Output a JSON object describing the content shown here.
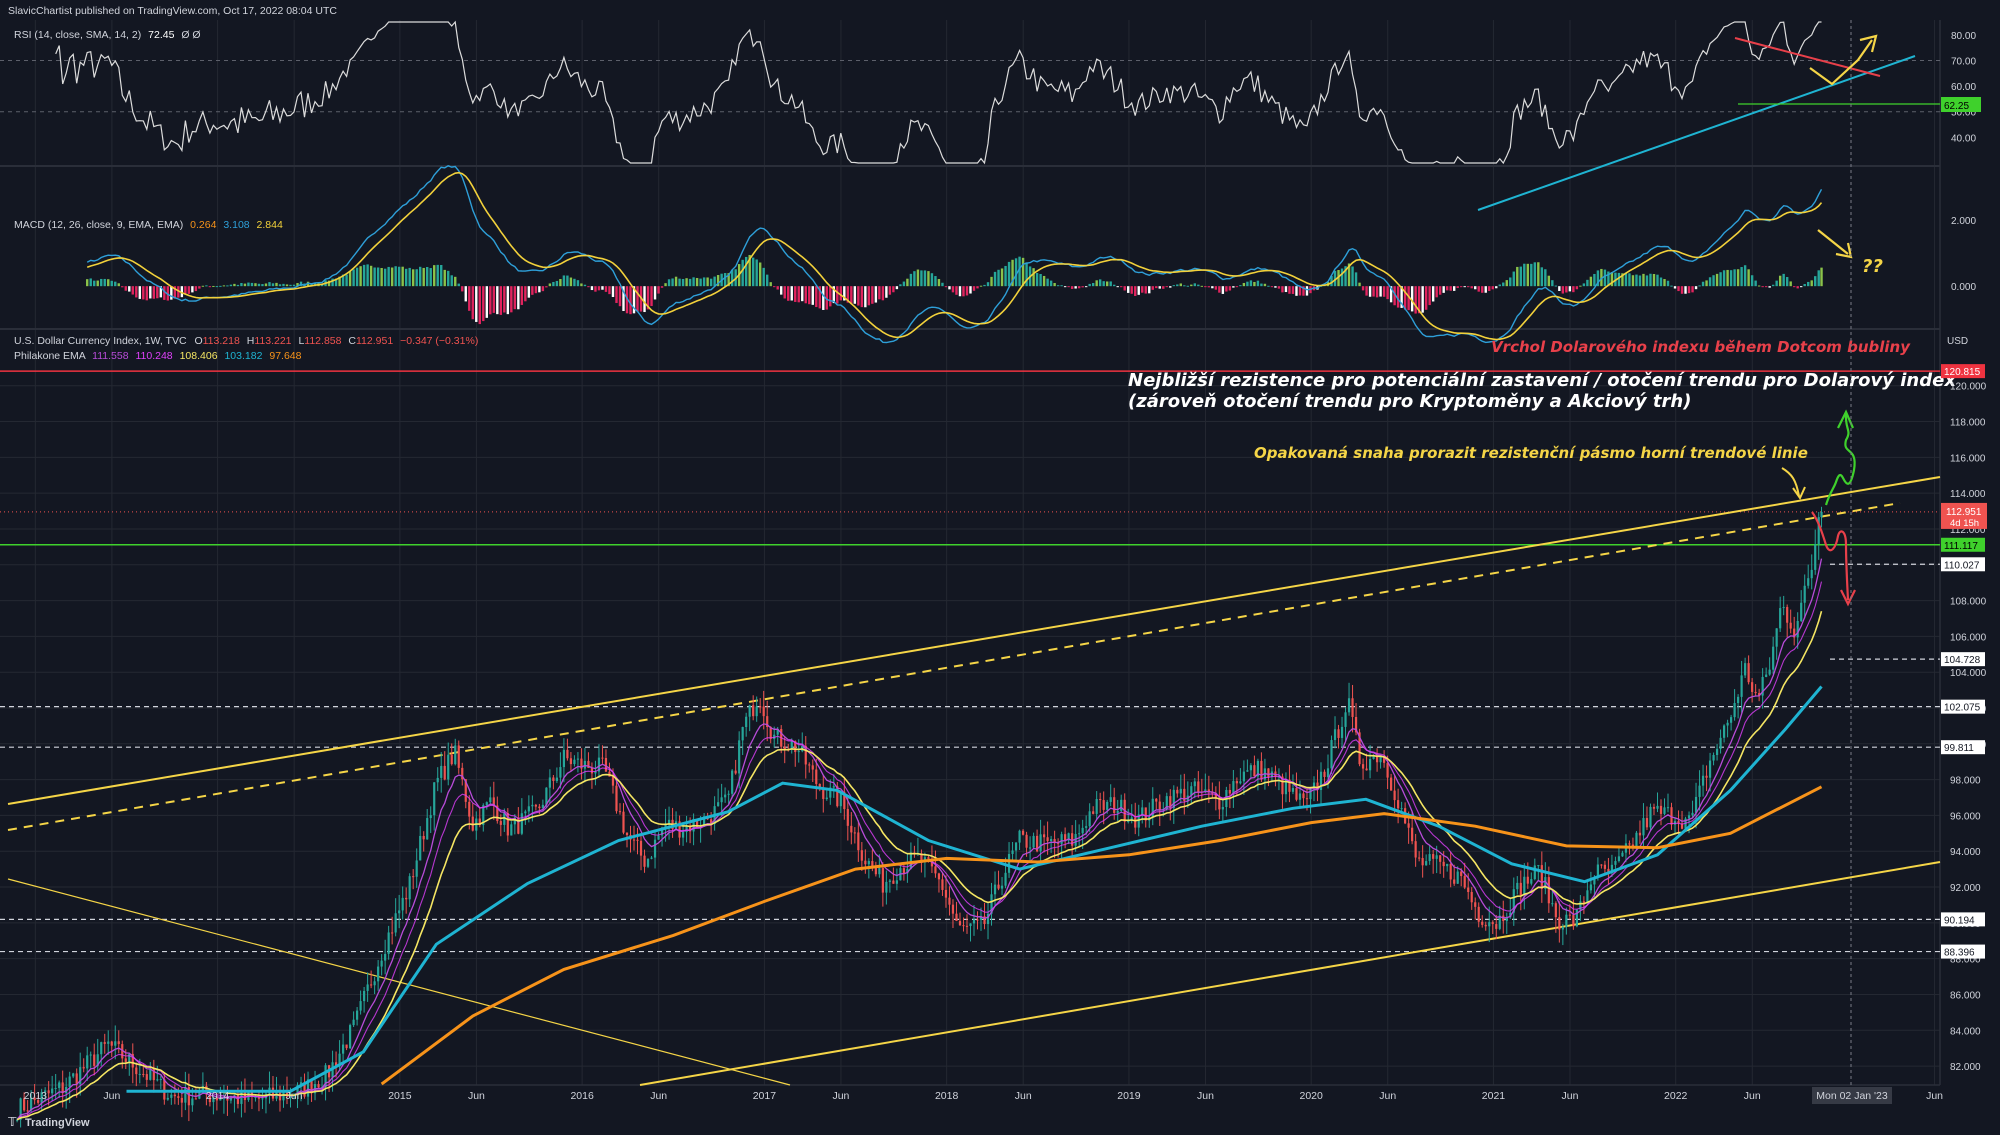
{
  "header": {
    "published": "SlavicChartist published on TradingView.com, Oct 17, 2022 08:04 UTC",
    "rsi_legend": "RSI (14, close, SMA, 14, 2)",
    "rsi_value": "72.45",
    "rsi_na": "Ø Ø",
    "macd_legend": "MACD (12, 26, close, 9, EMA, EMA)",
    "macd_values": [
      "0.264",
      "3.108",
      "2.844"
    ],
    "symbol": "U.S. Dollar Currency Index, 1W, TVC",
    "ohlc": {
      "o_label": "O",
      "o": "113.218",
      "h_label": "H",
      "h": "113.221",
      "l_label": "L",
      "l": "112.858",
      "c_label": "C",
      "c": "112.951",
      "chg": "−0.347 (−0.31%)"
    },
    "ema_legend": "Philakone EMA",
    "ema_values": [
      "111.558",
      "110.248",
      "108.406",
      "103.182",
      "97.648"
    ],
    "logo": "TradingView"
  },
  "colors": {
    "background": "#131722",
    "grid": "#242832",
    "rsi_line": "#dcdcdc",
    "macd_line": "#2e9fd8",
    "signal_line": "#f2d13b",
    "hist_green": "#26a69a",
    "hist_red": "#e0245e",
    "candle_up": "#26a69a",
    "candle_down": "#ef5350",
    "ema_fast": "#b84cd9",
    "ema_mid": "#e040fb",
    "ema_slow": "#f5e663",
    "ema_100": "#1fb4d2",
    "ema_200": "#f7931a",
    "trend_yellow": "#f5d547",
    "red_level": "#ef3340",
    "green_level": "#3fd12c",
    "note_yellow": "#f5d547",
    "note_red": "#e8404a",
    "note_white": "#ffffff"
  },
  "annotations": {
    "dotcom_peak": "Vrchol Dolarového indexu během Dotcom bubliny",
    "resistance_line1": "Nejbližší rezistence pro potenciální zastavení / otočení trendu pro Dolarový index",
    "resistance_line2": "(zároveň otočení trendu pro Kryptoměny a Akciový trh)",
    "repeated_attempt": "Opakovaná snaha prorazit rezistenční pásmo horní trendové linie",
    "question": "??"
  },
  "chart_data": [
    {
      "type": "line",
      "panel": "RSI",
      "series": [
        {
          "name": "RSI",
          "last": 72.45
        }
      ],
      "ylim": [
        30,
        85
      ],
      "y_ticks": [
        40,
        50,
        60,
        70,
        80
      ],
      "y_tick_labels": [
        "40.00",
        "50.00",
        "60.00",
        "70.00",
        "80.00"
      ],
      "highlight_level": {
        "label": "62.25",
        "value": 62.25
      }
    },
    {
      "type": "line",
      "panel": "MACD",
      "values": {
        "histogram": 0.264,
        "macd": 3.108,
        "signal": 2.844
      },
      "ylim": [
        -1.2,
        3.5
      ],
      "y_ticks": [
        0,
        2
      ],
      "y_tick_labels": [
        "0.000",
        "2.000"
      ]
    },
    {
      "type": "candlestick",
      "panel": "U.S. Dollar Currency Index",
      "y_unit": "USD",
      "ylim": [
        81,
        123
      ],
      "y_ticks": [
        82,
        84,
        86,
        88,
        90,
        92,
        94,
        96,
        98,
        100,
        102,
        104,
        106,
        108,
        110,
        112,
        114,
        116,
        118,
        120
      ],
      "y_tick_labels": [
        "82.000",
        "84.000",
        "86.000",
        "88.000",
        "90.000",
        "92.000",
        "94.000",
        "96.000",
        "98.000",
        "100.000",
        "102.000",
        "104.000",
        "106.000",
        "108.000",
        "110.000",
        "112.000",
        "114.000",
        "116.000",
        "118.000",
        "120.000"
      ],
      "x_labels": [
        "2013",
        "Jun",
        "2014",
        "Jun",
        "2015",
        "Jun",
        "2016",
        "Jun",
        "2017",
        "Jun",
        "2018",
        "Jun",
        "2019",
        "Jun",
        "2020",
        "Jun",
        "2021",
        "Jun",
        "2022",
        "Jun",
        "Jun"
      ],
      "x_label_years": [
        2013.0,
        2013.42,
        2014.0,
        2014.42,
        2015.0,
        2015.42,
        2016.0,
        2016.42,
        2017.0,
        2017.42,
        2018.0,
        2018.42,
        2019.0,
        2019.42,
        2020.0,
        2020.42,
        2021.0,
        2021.42,
        2022.0,
        2022.42,
        2023.42
      ],
      "xlim": [
        2012.85,
        2023.45
      ],
      "last_price": {
        "label": "112.951",
        "value": 112.951,
        "countdown": "4d 15h"
      },
      "cursor_date": "Mon 02 Jan '23",
      "levels": [
        {
          "label": "120.815",
          "value": 120.815,
          "style": "red"
        },
        {
          "label": "111.117",
          "value": 111.117,
          "style": "green"
        },
        {
          "label": "110.027",
          "value": 110.027,
          "style": "dashed"
        },
        {
          "label": "104.728",
          "value": 104.728,
          "style": "dashed"
        },
        {
          "label": "102.075",
          "value": 102.075,
          "style": "dashed"
        },
        {
          "label": "99.811",
          "value": 99.811,
          "style": "dashed"
        },
        {
          "label": "90.194",
          "value": 90.194,
          "style": "dashed"
        },
        {
          "label": "88.396",
          "value": 88.396,
          "style": "dashed"
        }
      ],
      "close_path": [
        [
          2012.9,
          79.6
        ],
        [
          2013.15,
          80.8
        ],
        [
          2013.4,
          83.2
        ],
        [
          2013.55,
          82.0
        ],
        [
          2013.75,
          80.3
        ],
        [
          2013.95,
          80.4
        ],
        [
          2014.2,
          80.1
        ],
        [
          2014.45,
          80.6
        ],
        [
          2014.6,
          81.5
        ],
        [
          2014.75,
          84.2
        ],
        [
          2014.9,
          88.4
        ],
        [
          2015.05,
          92.0
        ],
        [
          2015.2,
          97.8
        ],
        [
          2015.3,
          99.5
        ],
        [
          2015.4,
          95.5
        ],
        [
          2015.5,
          96.8
        ],
        [
          2015.6,
          95.2
        ],
        [
          2015.75,
          96.2
        ],
        [
          2015.9,
          99.2
        ],
        [
          2016.0,
          98.8
        ],
        [
          2016.12,
          98.6
        ],
        [
          2016.25,
          94.8
        ],
        [
          2016.35,
          93.4
        ],
        [
          2016.45,
          95.5
        ],
        [
          2016.55,
          95.3
        ],
        [
          2016.68,
          95.8
        ],
        [
          2016.8,
          96.8
        ],
        [
          2016.88,
          100.8
        ],
        [
          2016.97,
          102.8
        ],
        [
          2017.05,
          100.4
        ],
        [
          2017.18,
          99.8
        ],
        [
          2017.3,
          97.6
        ],
        [
          2017.42,
          96.8
        ],
        [
          2017.55,
          93.6
        ],
        [
          2017.65,
          92.2
        ],
        [
          2017.75,
          93.2
        ],
        [
          2017.85,
          93.6
        ],
        [
          2017.97,
          92.2
        ],
        [
          2018.07,
          89.6
        ],
        [
          2018.2,
          89.8
        ],
        [
          2018.3,
          92.5
        ],
        [
          2018.4,
          94.6
        ],
        [
          2018.55,
          94.4
        ],
        [
          2018.7,
          94.6
        ],
        [
          2018.8,
          96.4
        ],
        [
          2018.92,
          96.6
        ],
        [
          2019.05,
          95.8
        ],
        [
          2019.2,
          96.9
        ],
        [
          2019.35,
          97.4
        ],
        [
          2019.5,
          96.8
        ],
        [
          2019.6,
          98.2
        ],
        [
          2019.72,
          98.6
        ],
        [
          2019.85,
          97.6
        ],
        [
          2019.97,
          96.5
        ],
        [
          2020.08,
          98.7
        ],
        [
          2020.2,
          102.4
        ],
        [
          2020.27,
          98.9
        ],
        [
          2020.38,
          99.5
        ],
        [
          2020.48,
          96.8
        ],
        [
          2020.58,
          93.4
        ],
        [
          2020.7,
          93.2
        ],
        [
          2020.82,
          92.5
        ],
        [
          2020.92,
          90.5
        ],
        [
          2021.02,
          90.0
        ],
        [
          2021.15,
          92.1
        ],
        [
          2021.25,
          92.9
        ],
        [
          2021.35,
          90.2
        ],
        [
          2021.45,
          90.1
        ],
        [
          2021.55,
          92.8
        ],
        [
          2021.65,
          92.8
        ],
        [
          2021.75,
          94.2
        ],
        [
          2021.87,
          96.2
        ],
        [
          2022.0,
          96.0
        ],
        [
          2022.08,
          95.6
        ],
        [
          2022.18,
          98.8
        ],
        [
          2022.3,
          101.5
        ],
        [
          2022.38,
          104.2
        ],
        [
          2022.45,
          102.4
        ],
        [
          2022.52,
          104.5
        ],
        [
          2022.58,
          107.8
        ],
        [
          2022.65,
          106.4
        ],
        [
          2022.72,
          108.8
        ],
        [
          2022.75,
          110.0
        ],
        [
          2022.78,
          112.6
        ],
        [
          2022.8,
          113.4
        ],
        [
          2022.8,
          112.95
        ]
      ],
      "ema_paths": {
        "ema_100": [
          [
            2013.5,
            80.6
          ],
          [
            2014.4,
            80.6
          ],
          [
            2014.8,
            82.8
          ],
          [
            2015.2,
            88.8
          ],
          [
            2015.7,
            92.2
          ],
          [
            2016.2,
            94.6
          ],
          [
            2016.8,
            96.2
          ],
          [
            2017.1,
            97.8
          ],
          [
            2017.4,
            97.4
          ],
          [
            2017.9,
            94.6
          ],
          [
            2018.4,
            93.0
          ],
          [
            2018.9,
            94.2
          ],
          [
            2019.4,
            95.4
          ],
          [
            2019.9,
            96.4
          ],
          [
            2020.3,
            96.9
          ],
          [
            2020.7,
            95.4
          ],
          [
            2021.1,
            93.3
          ],
          [
            2021.5,
            92.3
          ],
          [
            2021.9,
            93.8
          ],
          [
            2022.3,
            97.4
          ],
          [
            2022.6,
            100.8
          ],
          [
            2022.8,
            103.2
          ]
        ],
        "ema_200": [
          [
            2014.9,
            81.0
          ],
          [
            2015.4,
            84.8
          ],
          [
            2015.9,
            87.4
          ],
          [
            2016.5,
            89.3
          ],
          [
            2017.0,
            91.2
          ],
          [
            2017.5,
            93.0
          ],
          [
            2018.0,
            93.6
          ],
          [
            2018.5,
            93.4
          ],
          [
            2019.0,
            93.8
          ],
          [
            2019.5,
            94.6
          ],
          [
            2020.0,
            95.6
          ],
          [
            2020.4,
            96.1
          ],
          [
            2020.9,
            95.4
          ],
          [
            2021.4,
            94.3
          ],
          [
            2021.9,
            94.2
          ],
          [
            2022.3,
            95.0
          ],
          [
            2022.8,
            97.6
          ]
        ]
      }
    }
  ]
}
